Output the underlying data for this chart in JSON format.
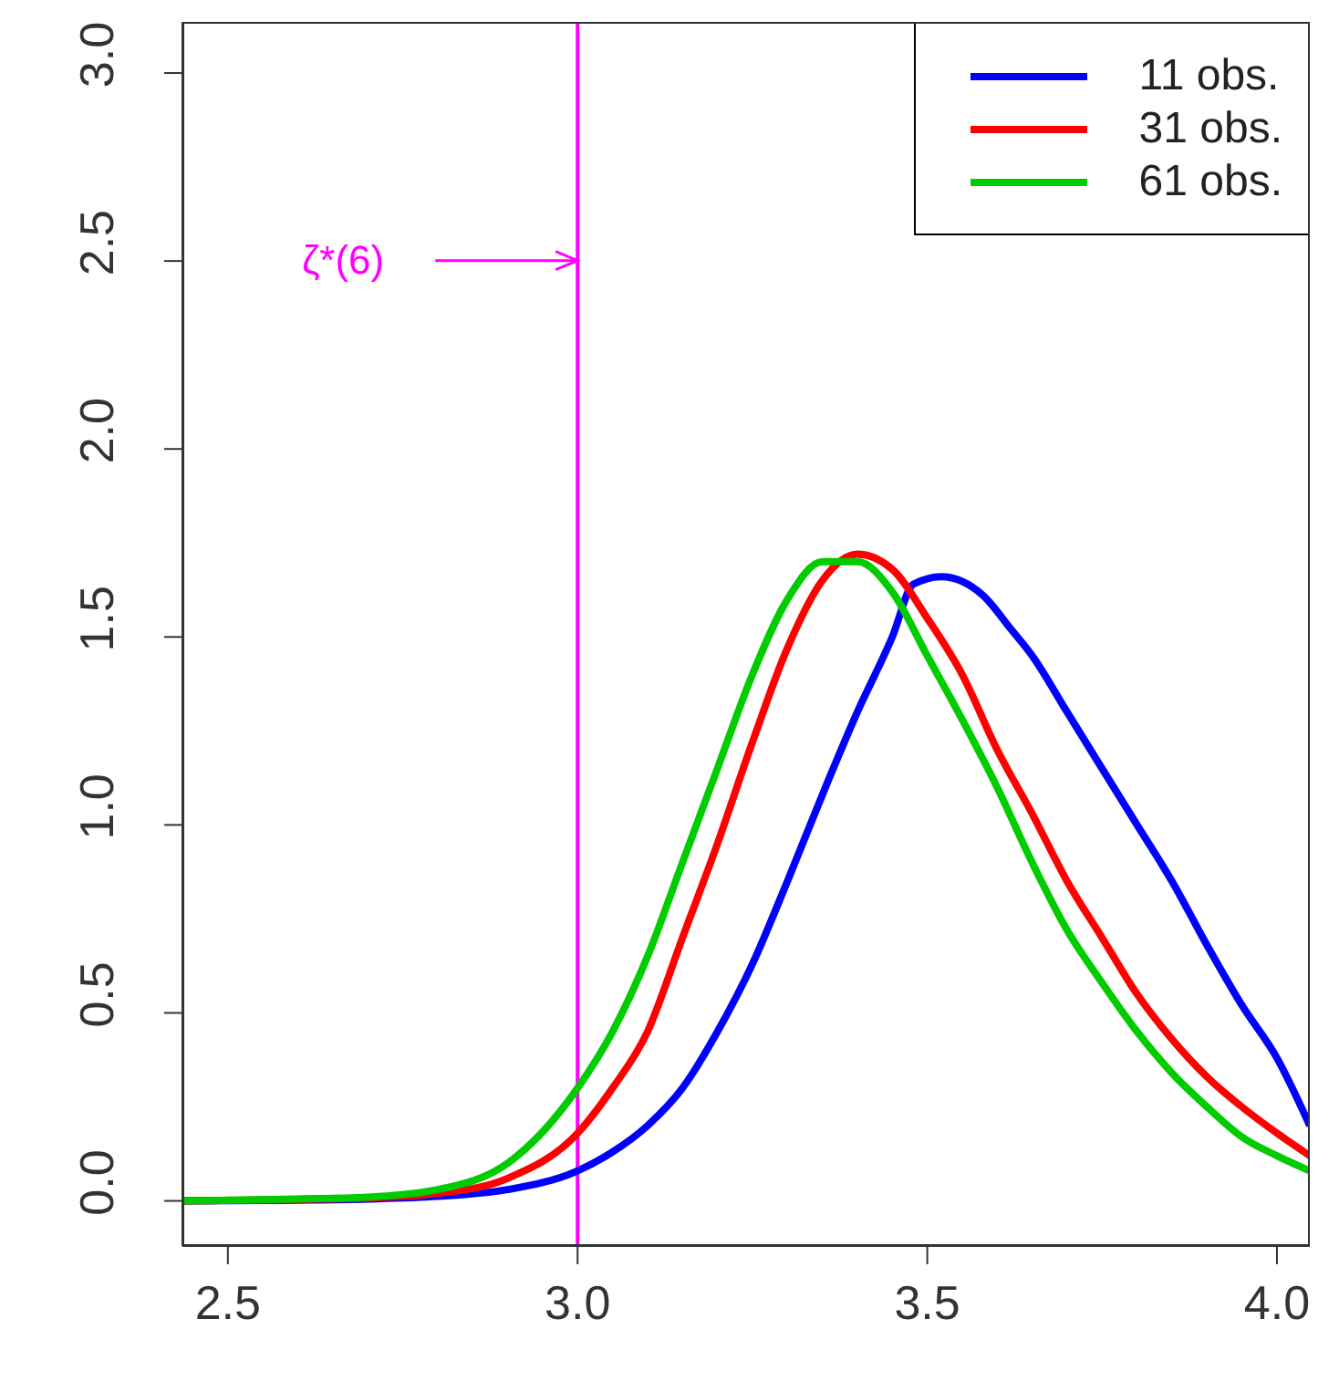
{
  "chart_data": {
    "type": "line",
    "xlim": [
      2.435,
      4.047
    ],
    "ylim": [
      -0.12,
      3.136
    ],
    "xticks": [
      {
        "value": 2.5,
        "label": "2.5"
      },
      {
        "value": 3,
        "label": "3.0"
      },
      {
        "value": 3.5,
        "label": "3.5"
      },
      {
        "value": 4,
        "label": "4.0"
      }
    ],
    "yticks": [
      {
        "value": 0,
        "label": "0.0"
      },
      {
        "value": 0.5,
        "label": "0.5"
      },
      {
        "value": 1,
        "label": "1.0"
      },
      {
        "value": 1.5,
        "label": "1.5"
      },
      {
        "value": 2,
        "label": "2.0"
      },
      {
        "value": 2.5,
        "label": "2.5"
      },
      {
        "value": 3,
        "label": "3.0"
      }
    ],
    "grid": false,
    "legend": "top right",
    "marker": "none",
    "line_style": "solid",
    "ref_lines": [
      {
        "axis": "x",
        "value": 3,
        "label": "ζ*(6)",
        "color": "#ff00ff"
      }
    ],
    "series": [
      {
        "name": "11 obs.",
        "color": "#0000ff",
        "x": [
          2.435,
          2.6,
          2.7,
          2.8,
          2.9,
          3.0,
          3.05,
          3.1,
          3.15,
          3.2,
          3.25,
          3.3,
          3.35,
          3.4,
          3.45,
          3.48,
          3.52,
          3.58,
          3.62,
          3.65,
          3.7,
          3.75,
          3.8,
          3.85,
          3.9,
          3.95,
          4.0,
          4.047
        ],
        "values": [
          0,
          0.002,
          0.005,
          0.012,
          0.03,
          0.08,
          0.13,
          0.2,
          0.3,
          0.45,
          0.63,
          0.85,
          1.08,
          1.3,
          1.5,
          1.64,
          1.66,
          1.61,
          1.52,
          1.45,
          1.3,
          1.15,
          1.0,
          0.85,
          0.68,
          0.52,
          0.38,
          0.2
        ]
      },
      {
        "name": "31 obs.",
        "color": "#ff0000",
        "x": [
          2.435,
          2.6,
          2.7,
          2.8,
          2.9,
          3.0,
          3.05,
          3.1,
          3.15,
          3.2,
          3.25,
          3.3,
          3.35,
          3.4,
          3.45,
          3.5,
          3.55,
          3.6,
          3.65,
          3.7,
          3.75,
          3.8,
          3.85,
          3.9,
          3.95,
          4.0,
          4.047
        ],
        "values": [
          0,
          0.004,
          0.008,
          0.02,
          0.06,
          0.18,
          0.3,
          0.45,
          0.7,
          0.95,
          1.22,
          1.47,
          1.65,
          1.72,
          1.68,
          1.55,
          1.4,
          1.2,
          1.03,
          0.85,
          0.7,
          0.55,
          0.43,
          0.33,
          0.25,
          0.18,
          0.12
        ]
      },
      {
        "name": "61 obs.",
        "color": "#00cc00",
        "x": [
          2.435,
          2.6,
          2.7,
          2.8,
          2.9,
          3.0,
          3.05,
          3.1,
          3.15,
          3.2,
          3.25,
          3.3,
          3.35,
          3.4,
          3.45,
          3.5,
          3.55,
          3.6,
          3.65,
          3.7,
          3.75,
          3.8,
          3.85,
          3.9,
          3.95,
          4.0,
          4.047
        ],
        "values": [
          0,
          0.005,
          0.01,
          0.03,
          0.1,
          0.3,
          0.45,
          0.65,
          0.9,
          1.15,
          1.4,
          1.6,
          1.7,
          1.7,
          1.62,
          1.45,
          1.28,
          1.1,
          0.9,
          0.72,
          0.58,
          0.45,
          0.34,
          0.25,
          0.17,
          0.12,
          0.08
        ]
      }
    ]
  }
}
